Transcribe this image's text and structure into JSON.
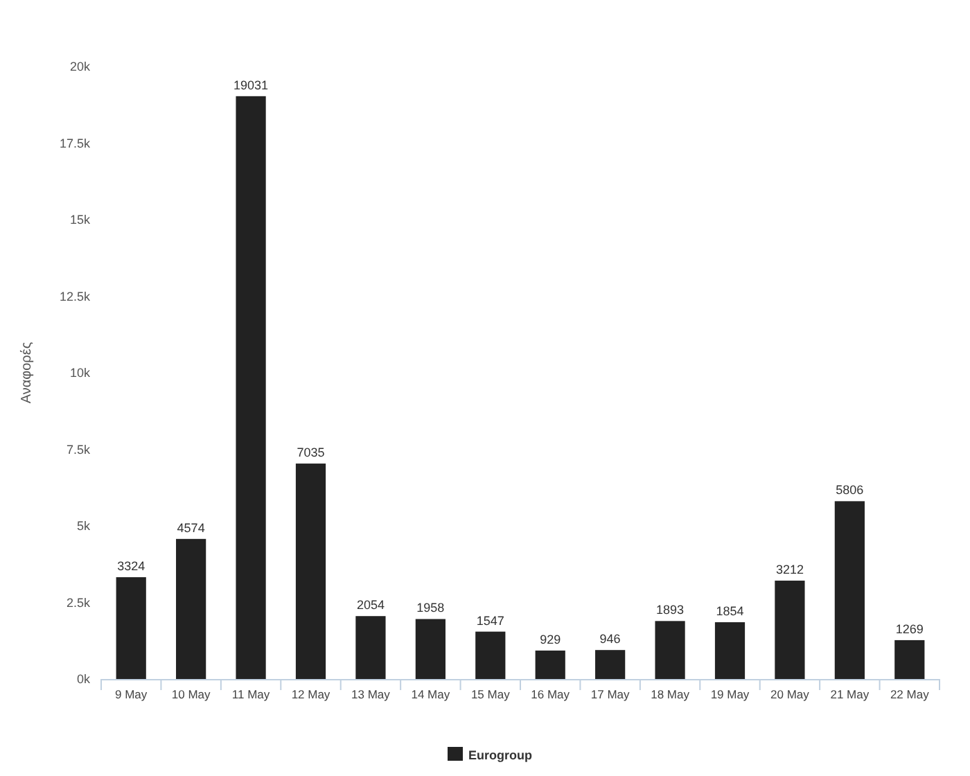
{
  "chart_data": {
    "type": "bar",
    "ylabel": "Αναφορές",
    "categories": [
      "9 May",
      "10 May",
      "11 May",
      "12 May",
      "13 May",
      "14 May",
      "15 May",
      "16 May",
      "17 May",
      "18 May",
      "19 May",
      "20 May",
      "21 May",
      "22 May"
    ],
    "series": [
      {
        "name": "Eurogroup",
        "color": "#222222",
        "values": [
          3324,
          4574,
          19031,
          7035,
          2054,
          1958,
          1547,
          929,
          946,
          1893,
          1854,
          3212,
          5806,
          1269
        ]
      }
    ],
    "ylim": [
      0,
      20000
    ],
    "yticks": [
      {
        "value": 0,
        "label": "0k"
      },
      {
        "value": 2500,
        "label": "2.5k"
      },
      {
        "value": 5000,
        "label": "5k"
      },
      {
        "value": 7500,
        "label": "7.5k"
      },
      {
        "value": 10000,
        "label": "10k"
      },
      {
        "value": 12500,
        "label": "12.5k"
      },
      {
        "value": 15000,
        "label": "15k"
      },
      {
        "value": 17500,
        "label": "17.5k"
      },
      {
        "value": 20000,
        "label": "20k"
      }
    ],
    "data_labels": true,
    "legend": "bottom",
    "grid": false
  }
}
